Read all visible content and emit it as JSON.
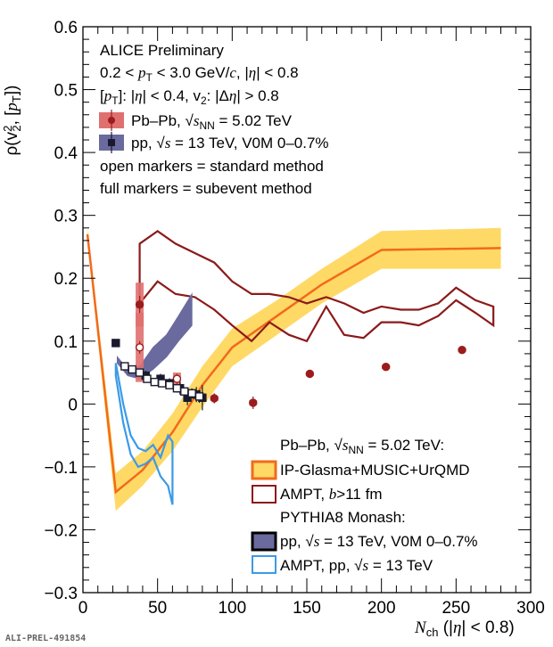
{
  "chart_data": {
    "type": "line",
    "title": "ALICE Preliminary",
    "ylabel": "ρ(v₂², [p_T])",
    "xlabel": "N_ch (|η| < 0.8)",
    "xlim": [
      0,
      300
    ],
    "ylim": [
      -0.3,
      0.6
    ],
    "x_ticks": [
      "0",
      "50",
      "100",
      "150",
      "200",
      "250",
      "300"
    ],
    "y_ticks": [
      "−0.3",
      "−0.2",
      "−0.1",
      "0",
      "0.1",
      "0.2",
      "0.3",
      "0.4",
      "0.5",
      "0.6"
    ],
    "grid": false,
    "info_lines": [
      "ALICE Preliminary",
      "0.2 < p_T < 3.0 GeV/c, |η| < 0.8",
      "[p_T]: |η| < 0.4, v₂: |Δη| > 0.8",
      "Pb–Pb, √s_NN = 5.02 TeV",
      "pp, √s = 13 TeV, V0M 0–0.7%",
      "open markers = standard method",
      "full markers = subevent method"
    ],
    "legend2_lines": [
      "Pb–Pb, √s_NN = 5.02 TeV:",
      "IP-Glasma+MUSIC+UrQMD",
      "AMPT, b>11 fm",
      "PYTHIA8 Monash:",
      "pp, √s = 13 TeV, V0M 0–0.7%",
      "AMPT, pp, √s = 13 TeV"
    ],
    "series": [
      {
        "name": "Pb–Pb, √s_NN = 5.02 TeV (full markers = subevent method)",
        "color": "#9b1c1c",
        "marker": "filled-circle",
        "x": [
          38,
          88,
          114,
          152,
          203,
          254
        ],
        "y": [
          0.158,
          0.009,
          0.002,
          0.048,
          0.059,
          0.086
        ],
        "yerr": [
          0.014,
          0.008,
          0.01,
          0.004,
          0.004,
          0.004
        ],
        "syst": [
          0.035,
          0.004,
          0.004,
          0.003,
          0.003,
          0.003
        ]
      },
      {
        "name": "Pb–Pb, √s_NN = 5.02 TeV (open markers = standard method)",
        "color": "#9b1c1c",
        "marker": "open-circle",
        "x": [
          38,
          63
        ],
        "y": [
          0.09,
          0.04
        ],
        "yerr": [
          0.01,
          0.008
        ],
        "syst": [
          0.055,
          0.01
        ]
      },
      {
        "name": "pp, √s = 13 TeV, V0M 0–0.7% (full markers = subevent method)",
        "color": "#1a1a2e",
        "marker": "filled-square",
        "x": [
          22,
          42,
          52,
          58,
          65,
          70,
          76,
          80
        ],
        "y": [
          0.097,
          0.045,
          0.04,
          0.033,
          0.025,
          0.01,
          0.015,
          0.01
        ],
        "yerr": [
          0.005,
          0.008,
          0.008,
          0.008,
          0.01,
          0.012,
          0.012,
          0.02
        ],
        "syst": [
          0.005,
          0.004,
          0.004,
          0.004,
          0.004,
          0.004,
          0.004,
          0.004
        ]
      },
      {
        "name": "pp, √s = 13 TeV, V0M 0–0.7% (open markers = standard method)",
        "color": "#1a1a2e",
        "marker": "open-square",
        "x": [
          28,
          33,
          38,
          43,
          48,
          53,
          58,
          63,
          68,
          73,
          78
        ],
        "y": [
          0.06,
          0.055,
          0.05,
          0.04,
          0.035,
          0.033,
          0.03,
          0.025,
          0.02,
          0.017,
          0.012
        ],
        "yerr": [
          0.005,
          0.005,
          0.005,
          0.005,
          0.005,
          0.005,
          0.006,
          0.006,
          0.006,
          0.008,
          0.01
        ],
        "syst": [
          0.003,
          0.003,
          0.003,
          0.003,
          0.003,
          0.003,
          0.003,
          0.003,
          0.003,
          0.003,
          0.003
        ]
      },
      {
        "name": "IP-Glasma+MUSIC+UrQMD",
        "color": "#f26a1b",
        "band_color": "#ffd966",
        "type": "band-line",
        "x": [
          3,
          22,
          40,
          60,
          80,
          100,
          130,
          160,
          200,
          280
        ],
        "y": [
          0.27,
          -0.14,
          -0.105,
          -0.045,
          0.03,
          0.09,
          0.14,
          0.19,
          0.245,
          0.248
        ],
        "band_lo": [
          0.26,
          -0.17,
          -0.13,
          -0.075,
          -0.005,
          0.06,
          0.11,
          0.16,
          0.215,
          0.215
        ],
        "band_hi": [
          0.28,
          -0.11,
          -0.075,
          -0.015,
          0.06,
          0.12,
          0.165,
          0.215,
          0.275,
          0.28
        ]
      },
      {
        "name": "AMPT, b>11 fm",
        "color": "#8b1a1a",
        "type": "open-band",
        "x": [
          38,
          50,
          62,
          75,
          88,
          100,
          113,
          125,
          138,
          150,
          163,
          175,
          188,
          200,
          213,
          225,
          238,
          250,
          263,
          275
        ],
        "y_hi": [
          0.255,
          0.275,
          0.255,
          0.24,
          0.225,
          0.195,
          0.175,
          0.175,
          0.17,
          0.16,
          0.17,
          0.16,
          0.145,
          0.155,
          0.15,
          0.15,
          0.16,
          0.185,
          0.165,
          0.155
        ],
        "y_lo": [
          0.16,
          0.195,
          0.175,
          0.17,
          0.15,
          0.125,
          0.1,
          0.13,
          0.11,
          0.1,
          0.155,
          0.11,
          0.105,
          0.13,
          0.13,
          0.125,
          0.14,
          0.165,
          0.145,
          0.125
        ]
      },
      {
        "name": "pp, √s = 13 TeV, V0M 0–0.7% (PYTHIA8 Monash)",
        "color": "#6a6a9e",
        "type": "filled-band",
        "x": [
          23,
          30,
          38,
          47,
          56,
          64,
          73
        ],
        "y_hi": [
          0.075,
          0.055,
          0.06,
          0.09,
          0.11,
          0.14,
          0.175
        ],
        "y_lo": [
          0.065,
          0.045,
          0.04,
          0.055,
          0.075,
          0.1,
          0.125
        ]
      },
      {
        "name": "AMPT, pp, √s = 13 TeV",
        "color": "#3a9ae8",
        "type": "open-band",
        "x": [
          22,
          27,
          32,
          37,
          42,
          47,
          52,
          57,
          60
        ],
        "y_hi": [
          0.065,
          0.0,
          -0.05,
          -0.07,
          -0.075,
          -0.065,
          -0.085,
          -0.05,
          -0.06
        ],
        "y_lo": [
          0.045,
          -0.03,
          -0.08,
          -0.1,
          -0.095,
          -0.085,
          -0.115,
          -0.13,
          -0.16
        ]
      }
    ]
  },
  "footer": {
    "prelim_id": "ALI-PREL-491854"
  }
}
